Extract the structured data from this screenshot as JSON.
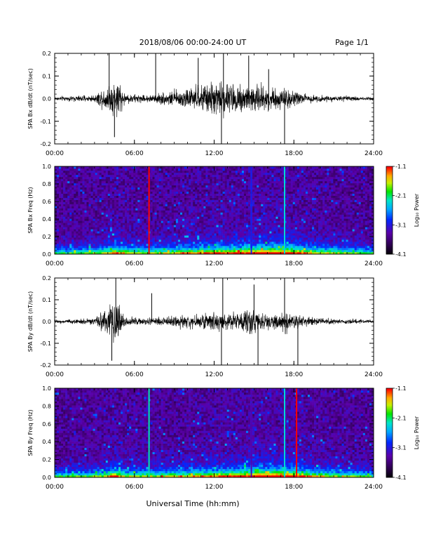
{
  "header": {
    "title": "2018/08/06  00:00-24:00 UT",
    "page": "Page 1/1"
  },
  "xlabel": "Universal Time (hh:mm)",
  "chart_data": [
    {
      "type": "line",
      "ylabel": "SPA Bx dB/dt (nT/sec)",
      "xlim": [
        0,
        24
      ],
      "ylim": [
        -0.2,
        0.2
      ],
      "x_ticks": [
        "00:00",
        "06:00",
        "12:00",
        "18:00",
        "24:00"
      ],
      "y_ticks": [
        "-0.2",
        "-0.1",
        "0.0",
        "0.1",
        "0.2"
      ],
      "series_color": "#000000",
      "envelope": [
        {
          "t": 0,
          "amp": 0.012
        },
        {
          "t": 3,
          "amp": 0.02
        },
        {
          "t": 4.2,
          "amp": 0.09
        },
        {
          "t": 4.7,
          "amp": 0.12
        },
        {
          "t": 5.3,
          "amp": 0.03
        },
        {
          "t": 7,
          "amp": 0.02
        },
        {
          "t": 8.5,
          "amp": 0.04
        },
        {
          "t": 10,
          "amp": 0.06
        },
        {
          "t": 11,
          "amp": 0.08
        },
        {
          "t": 12.3,
          "amp": 0.1
        },
        {
          "t": 13.5,
          "amp": 0.09
        },
        {
          "t": 15,
          "amp": 0.1
        },
        {
          "t": 16,
          "amp": 0.07
        },
        {
          "t": 17.5,
          "amp": 0.06
        },
        {
          "t": 19,
          "amp": 0.025
        },
        {
          "t": 21,
          "amp": 0.015
        },
        {
          "t": 24,
          "amp": 0.012
        }
      ],
      "spikes": [
        {
          "t": 4.1,
          "y": 0.2
        },
        {
          "t": 4.5,
          "y": -0.17
        },
        {
          "t": 7.6,
          "y": 0.2
        },
        {
          "t": 10.8,
          "y": 0.18
        },
        {
          "t": 12.55,
          "y": -0.2
        },
        {
          "t": 12.7,
          "y": 0.2
        },
        {
          "t": 14.6,
          "y": 0.19
        },
        {
          "t": 16.1,
          "y": 0.13
        },
        {
          "t": 17.3,
          "y": -0.2
        }
      ]
    },
    {
      "type": "heatmap",
      "ylabel": "SPA Bx Freq (Hz)",
      "xlim": [
        0,
        24
      ],
      "ylim": [
        0,
        1.0
      ],
      "x_ticks": [
        "00:00",
        "06:00",
        "12:00",
        "18:00",
        "24:00"
      ],
      "y_ticks": [
        "0.0",
        "0.2",
        "0.4",
        "0.6",
        "0.8",
        "1.0"
      ],
      "colorbar": {
        "label": "Log₁₀ Power",
        "ticks": [
          "-1.1",
          "-2.1",
          "-3.1",
          "-4.1"
        ],
        "range": [
          -4.1,
          -1.1
        ]
      },
      "vertical_lines": [
        {
          "t": 7.1,
          "level": -1.1
        },
        {
          "t": 14.8,
          "level": -3.0
        },
        {
          "t": 17.3,
          "level": -2.3
        }
      ],
      "activity": [
        {
          "t": 0,
          "level": 0.15
        },
        {
          "t": 3.5,
          "level": 0.3
        },
        {
          "t": 4.5,
          "level": 0.65
        },
        {
          "t": 5.5,
          "level": 0.35
        },
        {
          "t": 8,
          "level": 0.35
        },
        {
          "t": 10,
          "level": 0.5
        },
        {
          "t": 12.5,
          "level": 0.6
        },
        {
          "t": 14,
          "level": 0.65
        },
        {
          "t": 16,
          "level": 0.8
        },
        {
          "t": 17.5,
          "level": 0.75
        },
        {
          "t": 19.5,
          "level": 0.45
        },
        {
          "t": 21.5,
          "level": 0.3
        },
        {
          "t": 24,
          "level": 0.2
        }
      ]
    },
    {
      "type": "line",
      "ylabel": "SPA By dB/dt (nT/sec)",
      "xlim": [
        0,
        24
      ],
      "ylim": [
        -0.2,
        0.2
      ],
      "x_ticks": [
        "00:00",
        "06:00",
        "12:00",
        "18:00",
        "24:00"
      ],
      "y_ticks": [
        "-0.2",
        "-0.1",
        "0.0",
        "0.1",
        "0.2"
      ],
      "series_color": "#000000",
      "envelope": [
        {
          "t": 0,
          "amp": 0.01
        },
        {
          "t": 3,
          "amp": 0.02
        },
        {
          "t": 4.2,
          "amp": 0.1
        },
        {
          "t": 4.7,
          "amp": 0.13
        },
        {
          "t": 5.4,
          "amp": 0.03
        },
        {
          "t": 7,
          "amp": 0.02
        },
        {
          "t": 9,
          "amp": 0.03
        },
        {
          "t": 11,
          "amp": 0.05
        },
        {
          "t": 12.4,
          "amp": 0.06
        },
        {
          "t": 13.5,
          "amp": 0.05
        },
        {
          "t": 14.7,
          "amp": 0.09
        },
        {
          "t": 15.4,
          "amp": 0.05
        },
        {
          "t": 17.5,
          "amp": 0.07
        },
        {
          "t": 18.5,
          "amp": 0.04
        },
        {
          "t": 20,
          "amp": 0.02
        },
        {
          "t": 24,
          "amp": 0.01
        }
      ],
      "spikes": [
        {
          "t": 4.6,
          "y": 0.2
        },
        {
          "t": 4.3,
          "y": -0.18
        },
        {
          "t": 7.3,
          "y": 0.13
        },
        {
          "t": 12.55,
          "y": -0.2
        },
        {
          "t": 12.65,
          "y": 0.2
        },
        {
          "t": 15.3,
          "y": -0.2
        },
        {
          "t": 15.0,
          "y": 0.17
        },
        {
          "t": 17.3,
          "y": 0.2
        },
        {
          "t": 18.3,
          "y": -0.2
        }
      ]
    },
    {
      "type": "heatmap",
      "ylabel": "SPA By Freq (Hz)",
      "xlim": [
        0,
        24
      ],
      "ylim": [
        0,
        1.0
      ],
      "x_ticks": [
        "00:00",
        "06:00",
        "12:00",
        "18:00",
        "24:00"
      ],
      "y_ticks": [
        "0.0",
        "0.2",
        "0.4",
        "0.6",
        "0.8",
        "1.0"
      ],
      "colorbar": {
        "label": "Log₁₀ Power",
        "ticks": [
          "-1.1",
          "-2.1",
          "-3.1",
          "-4.1"
        ],
        "range": [
          -4.1,
          -1.1
        ]
      },
      "vertical_lines": [
        {
          "t": 7.1,
          "level": -2.2
        },
        {
          "t": 14.8,
          "level": -3.3
        },
        {
          "t": 17.3,
          "level": -2.3
        },
        {
          "t": 18.2,
          "level": -1.1
        }
      ],
      "activity": [
        {
          "t": 0,
          "level": 0.15
        },
        {
          "t": 3.5,
          "level": 0.3
        },
        {
          "t": 4.5,
          "level": 0.65
        },
        {
          "t": 5.5,
          "level": 0.35
        },
        {
          "t": 8,
          "level": 0.35
        },
        {
          "t": 10,
          "level": 0.45
        },
        {
          "t": 12.5,
          "level": 0.6
        },
        {
          "t": 14,
          "level": 0.65
        },
        {
          "t": 16,
          "level": 0.85
        },
        {
          "t": 17.5,
          "level": 0.8
        },
        {
          "t": 19.5,
          "level": 0.45
        },
        {
          "t": 21.5,
          "level": 0.3
        },
        {
          "t": 24,
          "level": 0.2
        }
      ]
    }
  ]
}
